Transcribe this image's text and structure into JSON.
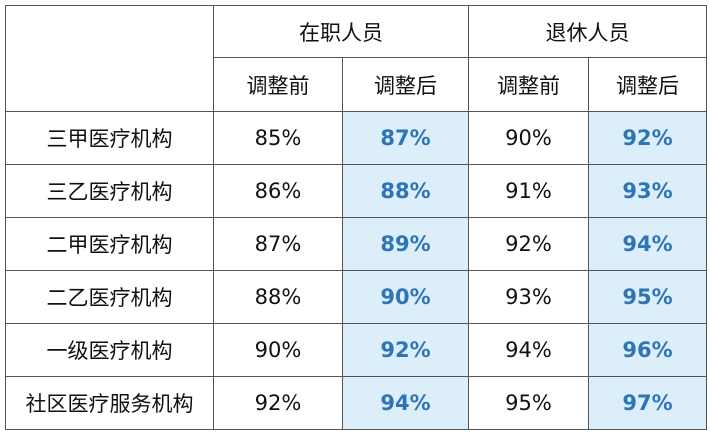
{
  "table": {
    "groups": [
      "在职人员",
      "退休人员"
    ],
    "subheaders": [
      "调整前",
      "调整后",
      "调整前",
      "调整后"
    ],
    "rows": [
      [
        "三甲医疗机构",
        "85%",
        "87%",
        "90%",
        "92%"
      ],
      [
        "三乙医疗机构",
        "86%",
        "88%",
        "91%",
        "93%"
      ],
      [
        "二甲医疗机构",
        "87%",
        "89%",
        "92%",
        "94%"
      ],
      [
        "二乙医疗机构",
        "88%",
        "90%",
        "93%",
        "95%"
      ],
      [
        "一级医疗机构",
        "90%",
        "92%",
        "94%",
        "96%"
      ],
      [
        "社区医疗服务机构",
        "92%",
        "94%",
        "95%",
        "97%"
      ]
    ]
  }
}
